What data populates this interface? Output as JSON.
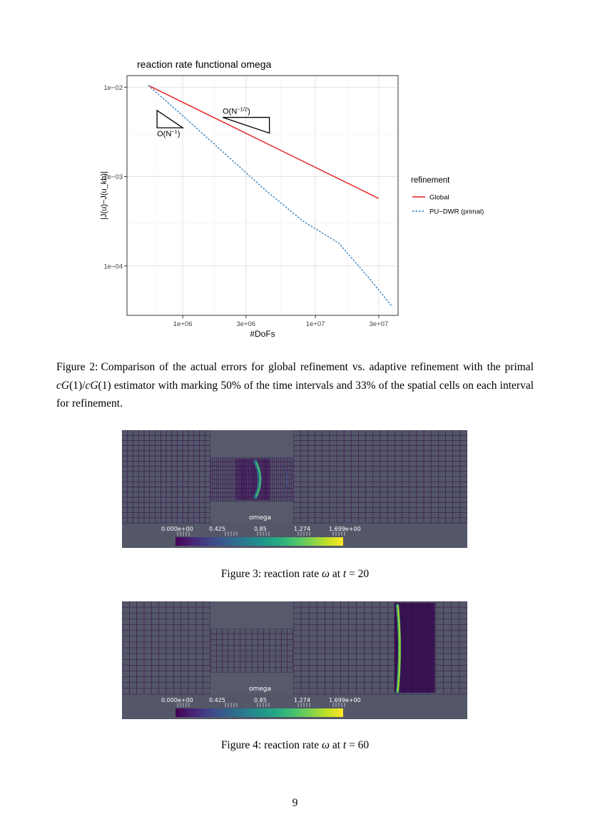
{
  "figure2": {
    "chart_data": {
      "type": "line",
      "title": "reaction rate functional omega",
      "xlabel": "#DoFs",
      "ylabel": "|J(u)−J(u_kh)|",
      "x_scale": "log",
      "y_scale": "log",
      "xlim": [
        380000,
        42000000
      ],
      "ylim": [
        2.8e-05,
        0.0135
      ],
      "x_ticks": [
        {
          "value": 1000000,
          "label": "1e+06"
        },
        {
          "value": 3000000,
          "label": "3e+06"
        },
        {
          "value": 10000000,
          "label": "1e+07"
        },
        {
          "value": 30000000,
          "label": "3e+07"
        }
      ],
      "y_ticks": [
        {
          "value": 0.01,
          "label": "1e−02"
        },
        {
          "value": 0.001,
          "label": "1e−03"
        },
        {
          "value": 0.0001,
          "label": "1e−04"
        }
      ],
      "grid": true,
      "legend": {
        "title": "refinement",
        "position": "right"
      },
      "series": [
        {
          "name": "Global",
          "color": "#e41a1c",
          "linestyle": "solid",
          "x": [
            550000,
            30000000
          ],
          "y": [
            0.0105,
            0.00057
          ]
        },
        {
          "name": "PU−DWR (primal)",
          "color": "#377eb8",
          "linestyle": "dotted",
          "x": [
            550000,
            1000000,
            2000000,
            4000000,
            8000000,
            15000000,
            25000000,
            38000000
          ],
          "y": [
            0.0105,
            0.0048,
            0.0019,
            0.00075,
            0.00032,
            0.00018,
            7.5e-05,
            3.5e-05
          ]
        }
      ],
      "annotations": [
        {
          "text": "O(N",
          "sup": "−1/2",
          "close": ")",
          "slope": -0.5
        },
        {
          "text": "O(N",
          "sup": "−1",
          "close": ")",
          "slope": -1
        }
      ]
    }
  },
  "caption2": {
    "label": "Figure 2:",
    "text_a": "Comparison of the actual errors for global refinement vs.  adaptive refinement with the primal ",
    "math": "cG",
    "text_b": "(1)/",
    "math2": "cG",
    "text_c": "(1) estimator with marking 50% of the time intervals and 33% of the spatial cells on each interval for refinement."
  },
  "colorbar": {
    "title": "omega",
    "labels": [
      "0.000e+00",
      "0.425",
      "0.85",
      "1.274",
      "1.699e+00"
    ]
  },
  "caption3": {
    "text": "Figure 3: reaction rate ",
    "sym": "ω",
    "mid": " at ",
    "t": "t",
    "eq": " = 20"
  },
  "caption4": {
    "text": "Figure 4: reaction rate ",
    "sym": "ω",
    "mid": " at ",
    "t": "t",
    "eq": " = 60"
  },
  "page_number": "9"
}
